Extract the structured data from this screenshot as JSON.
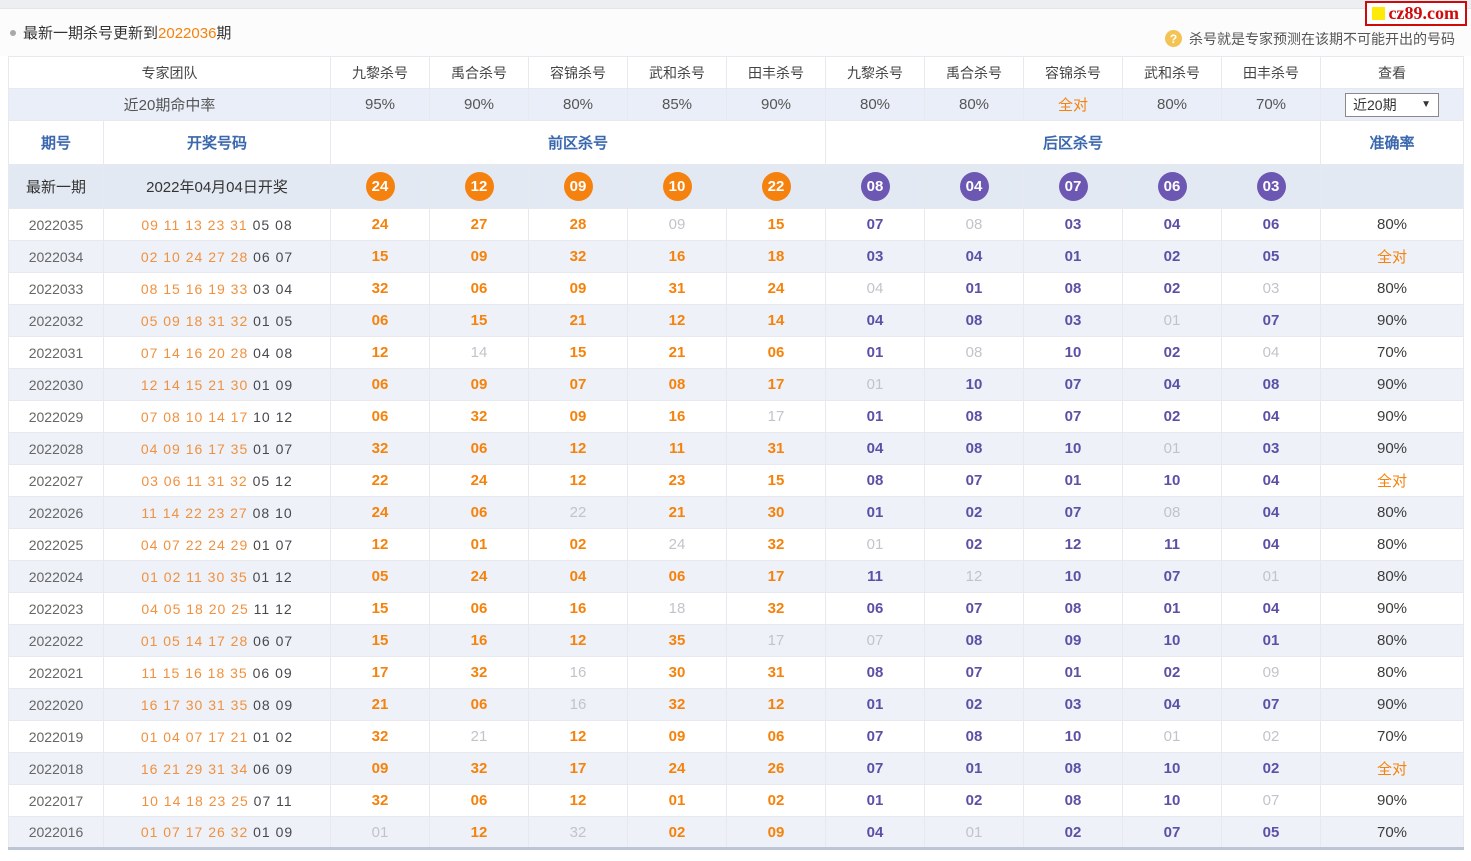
{
  "page": {
    "title_prefix": "最新一期杀号更新到",
    "title_issue": "2022036",
    "title_suffix": "期",
    "tooltip": "杀号就是专家预测在该期不可能开出的号码",
    "help_icon": "?",
    "logo": "cz89.com"
  },
  "header": {
    "team_label": "专家团队",
    "rate_label": "近20期命中率",
    "experts": [
      "九黎杀号",
      "禹合杀号",
      "容锦杀号",
      "武和杀号",
      "田丰杀号",
      "九黎杀号",
      "禹合杀号",
      "容锦杀号",
      "武和杀号",
      "田丰杀号"
    ],
    "rates": [
      "95%",
      "90%",
      "80%",
      "85%",
      "90%",
      "80%",
      "80%",
      "全对",
      "80%",
      "70%"
    ],
    "full_text": "全对",
    "view_label": "查看",
    "period_select": "近20期",
    "dropdown_arrow": "▼",
    "issue_label": "期号",
    "draw_label": "开奖号码",
    "front_kill_label": "前区杀号",
    "back_kill_label": "后区杀号",
    "accuracy_label": "准确率"
  },
  "latest": {
    "issue_label": "最新一期",
    "draw_label": "2022年04月04日开奖",
    "front_balls": [
      "24",
      "12",
      "09",
      "10",
      "22"
    ],
    "back_balls": [
      "08",
      "04",
      "07",
      "06",
      "03"
    ]
  },
  "rows": [
    {
      "issue": "2022035",
      "front_draw": "09 11 13 23 31",
      "back_draw": "05 08",
      "front_kills": [
        {
          "n": "24"
        },
        {
          "n": "27"
        },
        {
          "n": "28"
        },
        {
          "n": "09",
          "miss": true
        },
        {
          "n": "15"
        }
      ],
      "back_kills": [
        {
          "n": "07"
        },
        {
          "n": "08",
          "miss": true
        },
        {
          "n": "03"
        },
        {
          "n": "04"
        },
        {
          "n": "06"
        }
      ],
      "accuracy": "80%"
    },
    {
      "issue": "2022034",
      "front_draw": "02 10 24 27 28",
      "back_draw": "06 07",
      "front_kills": [
        {
          "n": "15"
        },
        {
          "n": "09"
        },
        {
          "n": "32"
        },
        {
          "n": "16"
        },
        {
          "n": "18"
        }
      ],
      "back_kills": [
        {
          "n": "03"
        },
        {
          "n": "04"
        },
        {
          "n": "01"
        },
        {
          "n": "02"
        },
        {
          "n": "05"
        }
      ],
      "accuracy": "全对"
    },
    {
      "issue": "2022033",
      "front_draw": "08 15 16 19 33",
      "back_draw": "03 04",
      "front_kills": [
        {
          "n": "32"
        },
        {
          "n": "06"
        },
        {
          "n": "09"
        },
        {
          "n": "31"
        },
        {
          "n": "24"
        }
      ],
      "back_kills": [
        {
          "n": "04",
          "miss": true
        },
        {
          "n": "01"
        },
        {
          "n": "08"
        },
        {
          "n": "02"
        },
        {
          "n": "03",
          "miss": true
        }
      ],
      "accuracy": "80%"
    },
    {
      "issue": "2022032",
      "front_draw": "05 09 18 31 32",
      "back_draw": "01 05",
      "front_kills": [
        {
          "n": "06"
        },
        {
          "n": "15"
        },
        {
          "n": "21"
        },
        {
          "n": "12"
        },
        {
          "n": "14"
        }
      ],
      "back_kills": [
        {
          "n": "04"
        },
        {
          "n": "08"
        },
        {
          "n": "03"
        },
        {
          "n": "01",
          "miss": true
        },
        {
          "n": "07"
        }
      ],
      "accuracy": "90%"
    },
    {
      "issue": "2022031",
      "front_draw": "07 14 16 20 28",
      "back_draw": "04 08",
      "front_kills": [
        {
          "n": "12"
        },
        {
          "n": "14",
          "miss": true
        },
        {
          "n": "15"
        },
        {
          "n": "21"
        },
        {
          "n": "06"
        }
      ],
      "back_kills": [
        {
          "n": "01"
        },
        {
          "n": "08",
          "miss": true
        },
        {
          "n": "10"
        },
        {
          "n": "02"
        },
        {
          "n": "04",
          "miss": true
        }
      ],
      "accuracy": "70%"
    },
    {
      "issue": "2022030",
      "front_draw": "12 14 15 21 30",
      "back_draw": "01 09",
      "front_kills": [
        {
          "n": "06"
        },
        {
          "n": "09"
        },
        {
          "n": "07"
        },
        {
          "n": "08"
        },
        {
          "n": "17"
        }
      ],
      "back_kills": [
        {
          "n": "01",
          "miss": true
        },
        {
          "n": "10"
        },
        {
          "n": "07"
        },
        {
          "n": "04"
        },
        {
          "n": "08"
        }
      ],
      "accuracy": "90%"
    },
    {
      "issue": "2022029",
      "front_draw": "07 08 10 14 17",
      "back_draw": "10 12",
      "front_kills": [
        {
          "n": "06"
        },
        {
          "n": "32"
        },
        {
          "n": "09"
        },
        {
          "n": "16"
        },
        {
          "n": "17",
          "miss": true
        }
      ],
      "back_kills": [
        {
          "n": "01"
        },
        {
          "n": "08"
        },
        {
          "n": "07"
        },
        {
          "n": "02"
        },
        {
          "n": "04"
        }
      ],
      "accuracy": "90%"
    },
    {
      "issue": "2022028",
      "front_draw": "04 09 16 17 35",
      "back_draw": "01 07",
      "front_kills": [
        {
          "n": "32"
        },
        {
          "n": "06"
        },
        {
          "n": "12"
        },
        {
          "n": "11"
        },
        {
          "n": "31"
        }
      ],
      "back_kills": [
        {
          "n": "04"
        },
        {
          "n": "08"
        },
        {
          "n": "10"
        },
        {
          "n": "01",
          "miss": true
        },
        {
          "n": "03"
        }
      ],
      "accuracy": "90%"
    },
    {
      "issue": "2022027",
      "front_draw": "03 06 11 31 32",
      "back_draw": "05 12",
      "front_kills": [
        {
          "n": "22"
        },
        {
          "n": "24"
        },
        {
          "n": "12"
        },
        {
          "n": "23"
        },
        {
          "n": "15"
        }
      ],
      "back_kills": [
        {
          "n": "08"
        },
        {
          "n": "07"
        },
        {
          "n": "01"
        },
        {
          "n": "10"
        },
        {
          "n": "04"
        }
      ],
      "accuracy": "全对"
    },
    {
      "issue": "2022026",
      "front_draw": "11 14 22 23 27",
      "back_draw": "08 10",
      "front_kills": [
        {
          "n": "24"
        },
        {
          "n": "06"
        },
        {
          "n": "22",
          "miss": true
        },
        {
          "n": "21"
        },
        {
          "n": "30"
        }
      ],
      "back_kills": [
        {
          "n": "01"
        },
        {
          "n": "02"
        },
        {
          "n": "07"
        },
        {
          "n": "08",
          "miss": true
        },
        {
          "n": "04"
        }
      ],
      "accuracy": "80%"
    },
    {
      "issue": "2022025",
      "front_draw": "04 07 22 24 29",
      "back_draw": "01 07",
      "front_kills": [
        {
          "n": "12"
        },
        {
          "n": "01"
        },
        {
          "n": "02"
        },
        {
          "n": "24",
          "miss": true
        },
        {
          "n": "32"
        }
      ],
      "back_kills": [
        {
          "n": "01",
          "miss": true
        },
        {
          "n": "02"
        },
        {
          "n": "12"
        },
        {
          "n": "11"
        },
        {
          "n": "04"
        }
      ],
      "accuracy": "80%"
    },
    {
      "issue": "2022024",
      "front_draw": "01 02 11 30 35",
      "back_draw": "01 12",
      "front_kills": [
        {
          "n": "05"
        },
        {
          "n": "24"
        },
        {
          "n": "04"
        },
        {
          "n": "06"
        },
        {
          "n": "17"
        }
      ],
      "back_kills": [
        {
          "n": "11"
        },
        {
          "n": "12",
          "miss": true
        },
        {
          "n": "10"
        },
        {
          "n": "07"
        },
        {
          "n": "01",
          "miss": true
        }
      ],
      "accuracy": "80%"
    },
    {
      "issue": "2022023",
      "front_draw": "04 05 18 20 25",
      "back_draw": "11 12",
      "front_kills": [
        {
          "n": "15"
        },
        {
          "n": "06"
        },
        {
          "n": "16"
        },
        {
          "n": "18",
          "miss": true
        },
        {
          "n": "32"
        }
      ],
      "back_kills": [
        {
          "n": "06"
        },
        {
          "n": "07"
        },
        {
          "n": "08"
        },
        {
          "n": "01"
        },
        {
          "n": "04"
        }
      ],
      "accuracy": "90%"
    },
    {
      "issue": "2022022",
      "front_draw": "01 05 14 17 28",
      "back_draw": "06 07",
      "front_kills": [
        {
          "n": "15"
        },
        {
          "n": "16"
        },
        {
          "n": "12"
        },
        {
          "n": "35"
        },
        {
          "n": "17",
          "miss": true
        }
      ],
      "back_kills": [
        {
          "n": "07",
          "miss": true
        },
        {
          "n": "08"
        },
        {
          "n": "09"
        },
        {
          "n": "10"
        },
        {
          "n": "01"
        }
      ],
      "accuracy": "80%"
    },
    {
      "issue": "2022021",
      "front_draw": "11 15 16 18 35",
      "back_draw": "06 09",
      "front_kills": [
        {
          "n": "17"
        },
        {
          "n": "32"
        },
        {
          "n": "16",
          "miss": true
        },
        {
          "n": "30"
        },
        {
          "n": "31"
        }
      ],
      "back_kills": [
        {
          "n": "08"
        },
        {
          "n": "07"
        },
        {
          "n": "01"
        },
        {
          "n": "02"
        },
        {
          "n": "09",
          "miss": true
        }
      ],
      "accuracy": "80%"
    },
    {
      "issue": "2022020",
      "front_draw": "16 17 30 31 35",
      "back_draw": "08 09",
      "front_kills": [
        {
          "n": "21"
        },
        {
          "n": "06"
        },
        {
          "n": "16",
          "miss": true
        },
        {
          "n": "32"
        },
        {
          "n": "12"
        }
      ],
      "back_kills": [
        {
          "n": "01"
        },
        {
          "n": "02"
        },
        {
          "n": "03"
        },
        {
          "n": "04"
        },
        {
          "n": "07"
        }
      ],
      "accuracy": "90%"
    },
    {
      "issue": "2022019",
      "front_draw": "01 04 07 17 21",
      "back_draw": "01 02",
      "front_kills": [
        {
          "n": "32"
        },
        {
          "n": "21",
          "miss": true
        },
        {
          "n": "12"
        },
        {
          "n": "09"
        },
        {
          "n": "06"
        }
      ],
      "back_kills": [
        {
          "n": "07"
        },
        {
          "n": "08"
        },
        {
          "n": "10"
        },
        {
          "n": "01",
          "miss": true
        },
        {
          "n": "02",
          "miss": true
        }
      ],
      "accuracy": "70%"
    },
    {
      "issue": "2022018",
      "front_draw": "16 21 29 31 34",
      "back_draw": "06 09",
      "front_kills": [
        {
          "n": "09"
        },
        {
          "n": "32"
        },
        {
          "n": "17"
        },
        {
          "n": "24"
        },
        {
          "n": "26"
        }
      ],
      "back_kills": [
        {
          "n": "07"
        },
        {
          "n": "01"
        },
        {
          "n": "08"
        },
        {
          "n": "10"
        },
        {
          "n": "02"
        }
      ],
      "accuracy": "全对"
    },
    {
      "issue": "2022017",
      "front_draw": "10 14 18 23 25",
      "back_draw": "07 11",
      "front_kills": [
        {
          "n": "32"
        },
        {
          "n": "06"
        },
        {
          "n": "12"
        },
        {
          "n": "01"
        },
        {
          "n": "02"
        }
      ],
      "back_kills": [
        {
          "n": "01"
        },
        {
          "n": "02"
        },
        {
          "n": "08"
        },
        {
          "n": "10"
        },
        {
          "n": "07",
          "miss": true
        }
      ],
      "accuracy": "90%"
    },
    {
      "issue": "2022016",
      "front_draw": "01 07 17 26 32",
      "back_draw": "01 09",
      "front_kills": [
        {
          "n": "01",
          "miss": true
        },
        {
          "n": "12"
        },
        {
          "n": "32",
          "miss": true
        },
        {
          "n": "02"
        },
        {
          "n": "09"
        }
      ],
      "back_kills": [
        {
          "n": "04"
        },
        {
          "n": "01",
          "miss": true
        },
        {
          "n": "02"
        },
        {
          "n": "07"
        },
        {
          "n": "05"
        }
      ],
      "accuracy": "70%"
    }
  ],
  "colors": {
    "accent_orange": "#f5820a",
    "accent_purple": "#6c57b2",
    "header_blue": "#3a67ad",
    "miss_gray": "#c3c3ca",
    "logo_red": "#cf0a0a"
  }
}
